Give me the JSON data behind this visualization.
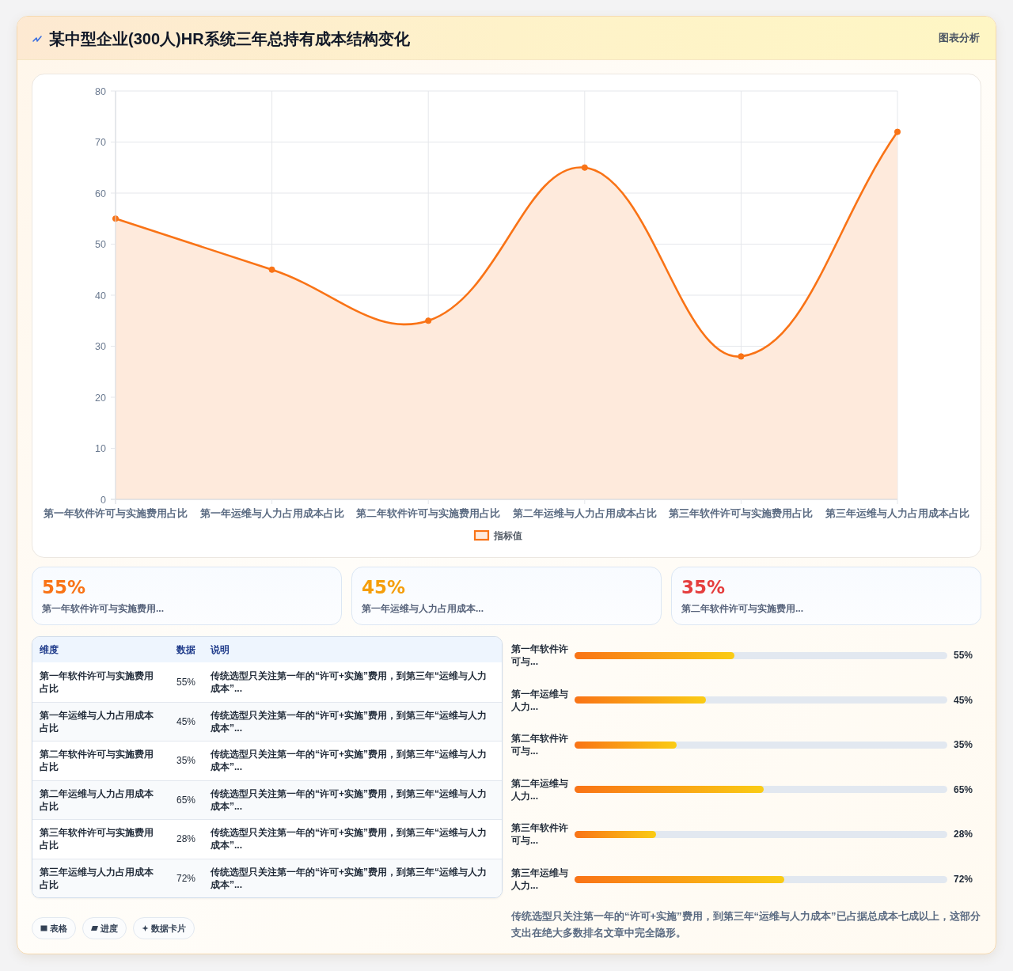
{
  "chart_data": [
    {
      "type": "area",
      "title": "某中型企业(300人)HR系统三年总持有成本结构变化",
      "subtitle": "图表分析",
      "categories": [
        "第一年软件许可与实施费用占比",
        "第一年运维与人力占用成本占比",
        "第二年软件许可与实施费用占比",
        "第二年运维与人力占用成本占比",
        "第三年软件许可与实施费用占比",
        "第三年运维与人力占用成本占比"
      ],
      "series": [
        {
          "name": "指标值",
          "color": "#f97316",
          "values": [
            55,
            45,
            35,
            65,
            28,
            72
          ]
        }
      ],
      "ylim": [
        0,
        80
      ],
      "yticks": [
        0,
        10,
        20,
        30,
        40,
        50,
        60,
        70,
        80
      ],
      "grid": true,
      "legend": "bottom",
      "marker": "circle"
    },
    {
      "type": "other",
      "categories": [
        "第一年软件许可与实施费用...",
        "第一年运维与人力占用成本...",
        "第二年软件许可与实施费用..."
      ],
      "value_labels": [
        "55%",
        "45%",
        "35%"
      ]
    },
    {
      "type": "other",
      "categories": [
        "维度",
        "数据",
        "说明"
      ],
      "cell_labels": [
        [
          "第一年软件许可与实施费用占比",
          "55%",
          "传统选型只关注第一年的“许可+实施”费用，到第三年“运维与人力成本”..."
        ],
        [
          "第一年运维与人力占用成本占比",
          "45%",
          "传统选型只关注第一年的“许可+实施”费用，到第三年“运维与人力成本”..."
        ],
        [
          "第二年软件许可与实施费用占比",
          "35%",
          "传统选型只关注第一年的“许可+实施”费用，到第三年“运维与人力成本”..."
        ],
        [
          "第二年运维与人力占用成本占比",
          "65%",
          "传统选型只关注第一年的“许可+实施”费用，到第三年“运维与人力成本”..."
        ],
        [
          "第三年软件许可与实施费用占比",
          "28%",
          "传统选型只关注第一年的“许可+实施”费用，到第三年“运维与人力成本”..."
        ],
        [
          "第三年运维与人力占用成本占比",
          "72%",
          "传统选型只关注第一年的“许可+实施”费用，到第三年“运维与人力成本”..."
        ]
      ],
      "annotations": [
        "表格",
        "进度",
        "数据卡片"
      ]
    },
    {
      "type": "bar",
      "orientation": "horizontal",
      "categories": [
        "第一年软件许可与...",
        "第一年运维与人力...",
        "第二年软件许可与...",
        "第二年运维与人力...",
        "第三年软件许可与...",
        "第三年运维与人力..."
      ],
      "values": [
        55,
        45,
        35,
        65,
        28,
        72
      ],
      "value_labels": [
        "55%",
        "45%",
        "35%",
        "65%",
        "28%",
        "72%"
      ],
      "color": "#f97316",
      "xlim": [
        0,
        128
      ],
      "annotations": [
        "传统选型只关注第一年的“许可+实施”费用，到第三年“运维与人力成本”已占据总成本七成以上，这部分支出在绝大多数排名文章中完全隐形。"
      ]
    }
  ]
}
